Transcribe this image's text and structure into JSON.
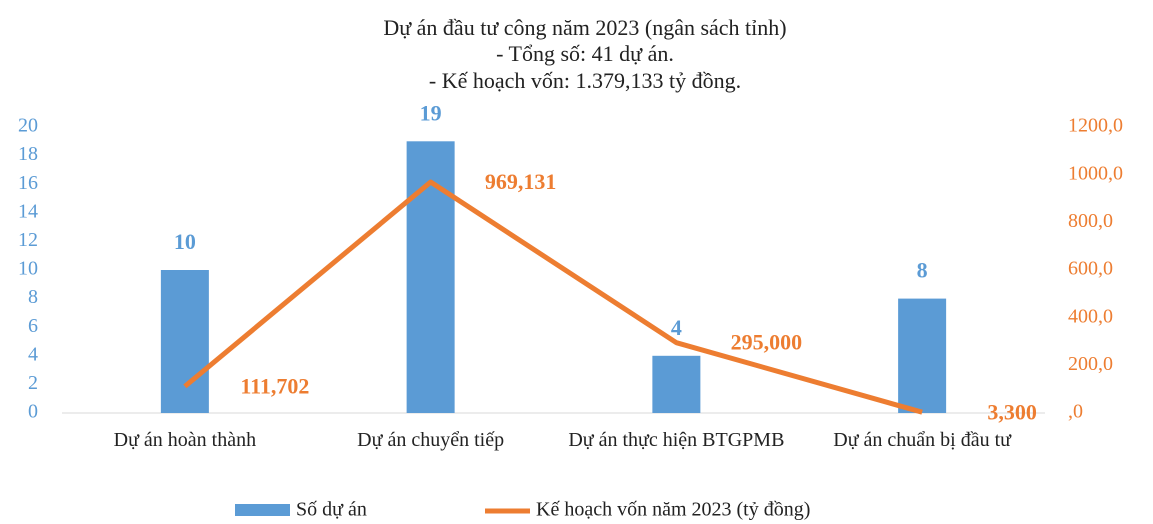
{
  "chart_data": {
    "type": "bar",
    "title": "Dự án đầu tư công năm 2023 (ngân sách tỉnh)",
    "subtitle": [
      "- Tổng số: 41 dự án.",
      "- Kế hoạch vốn: 1.379,133 tỷ đồng."
    ],
    "categories": [
      "Dự án hoàn thành",
      "Dự án chuyển tiếp",
      "Dự án thực hiện BTGPMB",
      "Dự án chuẩn bị đầu tư"
    ],
    "series": [
      {
        "name": "Số dự án",
        "type": "bar",
        "color": "#5b9bd5",
        "values": [
          10,
          19,
          4,
          8
        ]
      },
      {
        "name": "Kế hoạch vốn năm 2023 (tỷ đồng)",
        "type": "line",
        "axis": "y2",
        "color": "#ed7d31",
        "values": [
          111.702,
          969.131,
          295.0,
          3.3
        ],
        "value_labels": [
          "111,702",
          "969,131",
          "295,000",
          "3,300"
        ]
      }
    ],
    "ylim": [
      0,
      20
    ],
    "yticks": [
      0,
      2,
      4,
      6,
      8,
      10,
      12,
      14,
      16,
      18,
      20
    ],
    "y2lim": [
      0,
      1200
    ],
    "y2ticks": [
      {
        "value": 0,
        "label": ",0"
      },
      {
        "value": 200,
        "label": "200,0"
      },
      {
        "value": 400,
        "label": "400,0"
      },
      {
        "value": 600,
        "label": "600,0"
      },
      {
        "value": 800,
        "label": "800,0"
      },
      {
        "value": 1000,
        "label": "1000,0"
      },
      {
        "value": 1200,
        "label": "1200,0"
      }
    ],
    "grid": false,
    "legend": "bottom"
  }
}
